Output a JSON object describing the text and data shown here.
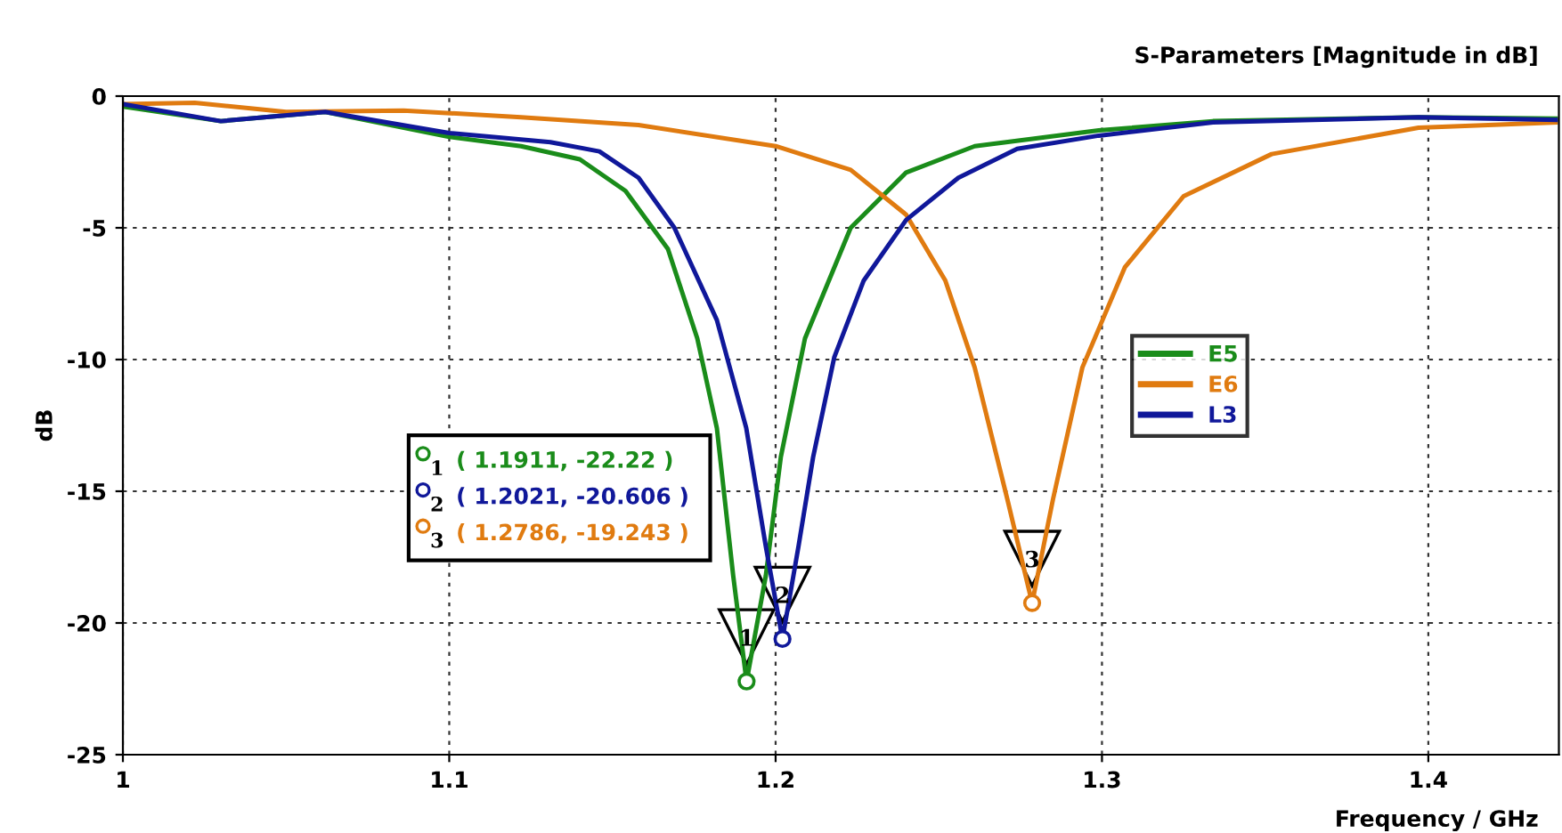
{
  "chart_data": {
    "type": "line",
    "title": "S-Parameters [Magnitude in dB]",
    "xlabel": "Frequency / GHz",
    "ylabel": "dB",
    "xlim": [
      1,
      1.44
    ],
    "xticks": [
      1,
      1.1,
      1.2,
      1.3,
      1.4
    ],
    "ylim": [
      -25,
      0
    ],
    "yticks": [
      -25,
      -20,
      -15,
      -10,
      -5,
      0
    ],
    "grid": true,
    "legend": "right",
    "line_style": "solid",
    "marker": "none",
    "series": [
      {
        "name": "E5",
        "color": "#1a8c1a",
        "x": [
          1.0,
          1.03,
          1.062,
          1.1,
          1.122,
          1.14,
          1.154,
          1.167,
          1.176,
          1.182,
          1.187,
          1.1911,
          1.197,
          1.2016,
          1.209,
          1.223,
          1.24,
          1.261,
          1.299,
          1.334,
          1.397,
          1.439
        ],
        "values": [
          -0.4,
          -0.95,
          -0.6,
          -1.55,
          -1.9,
          -2.4,
          -3.6,
          -5.8,
          -9.2,
          -12.6,
          -18.2,
          -22.22,
          -18.2,
          -13.7,
          -9.2,
          -5.0,
          -2.9,
          -1.9,
          -1.3,
          -0.95,
          -0.8,
          -0.85
        ]
      },
      {
        "name": "E6",
        "color": "#e07b10",
        "x": [
          1.0,
          1.022,
          1.05,
          1.086,
          1.122,
          1.158,
          1.2,
          1.223,
          1.24,
          1.252,
          1.261,
          1.271,
          1.2786,
          1.285,
          1.294,
          1.307,
          1.325,
          1.352,
          1.397,
          1.439
        ],
        "values": [
          -0.3,
          -0.25,
          -0.6,
          -0.55,
          -0.8,
          -1.1,
          -1.9,
          -2.8,
          -4.5,
          -7.0,
          -10.3,
          -15.3,
          -19.243,
          -15.3,
          -10.3,
          -6.5,
          -3.8,
          -2.2,
          -1.2,
          -1.0
        ]
      },
      {
        "name": "L3",
        "color": "#10189a",
        "x": [
          1.0,
          1.03,
          1.062,
          1.1,
          1.131,
          1.146,
          1.158,
          1.169,
          1.182,
          1.191,
          1.197,
          1.2021,
          1.207,
          1.2115,
          1.218,
          1.227,
          1.24,
          1.256,
          1.274,
          1.299,
          1.334,
          1.397,
          1.439
        ],
        "values": [
          -0.3,
          -0.95,
          -0.6,
          -1.4,
          -1.75,
          -2.1,
          -3.1,
          -5.0,
          -8.5,
          -12.6,
          -17.1,
          -20.606,
          -17.1,
          -13.7,
          -9.9,
          -7.0,
          -4.7,
          -3.1,
          -2.0,
          -1.5,
          -1.0,
          -0.8,
          -0.9
        ]
      }
    ],
    "annotations": [
      {
        "text": "1",
        "x": 1.1911,
        "y": -22.22
      },
      {
        "text": "2",
        "x": 1.2021,
        "y": -20.606
      },
      {
        "text": "3",
        "x": 1.2786,
        "y": -19.243
      },
      "1",
      "( 1.1911, -22.22 )",
      "2",
      "( 1.2021, -20.606 )",
      "3",
      "( 1.2786, -19.243 )"
    ]
  }
}
